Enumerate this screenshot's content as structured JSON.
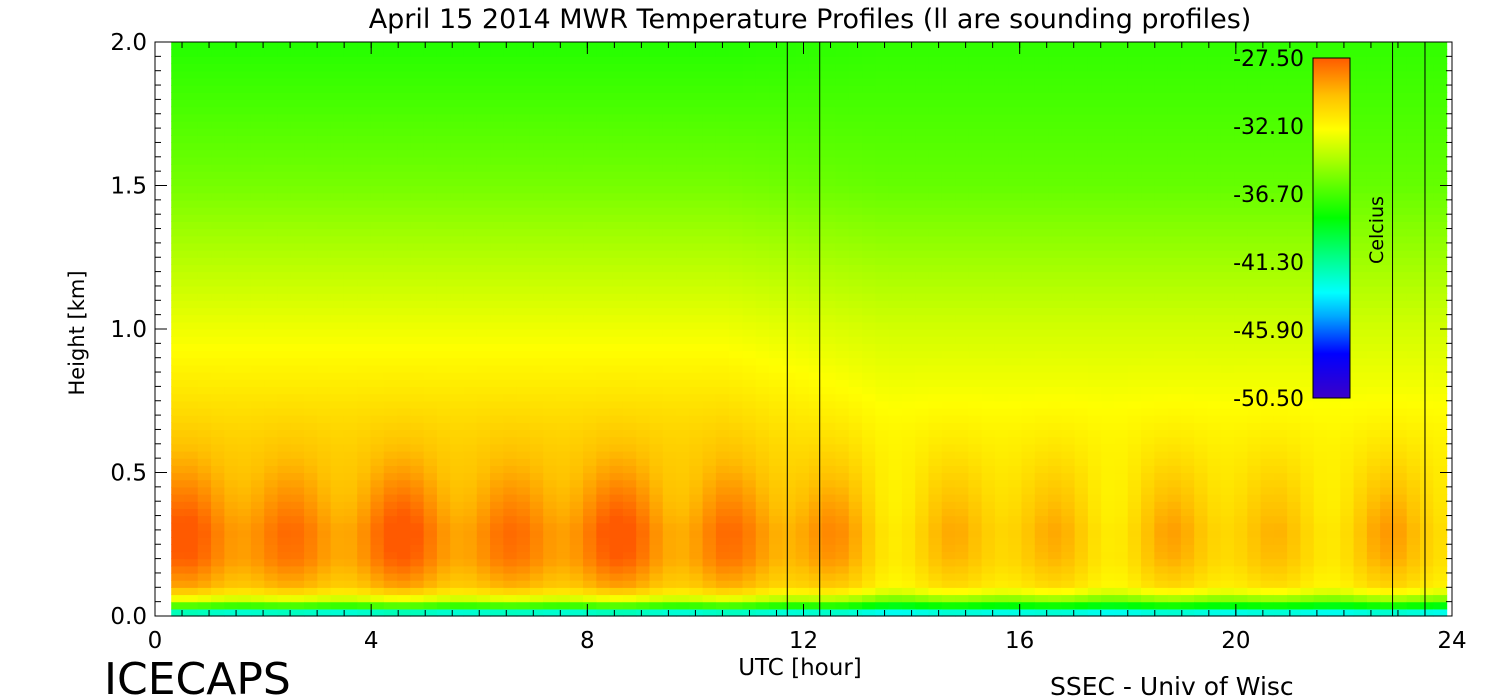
{
  "chart_data": {
    "type": "heatmap",
    "title": "April 15 2014 MWR Temperature Profiles (ll are sounding profiles)",
    "xlabel": "UTC [hour]",
    "ylabel": "Height [km]",
    "xlim": [
      0,
      24
    ],
    "ylim": [
      0,
      2
    ],
    "x_ticks": [
      0,
      4,
      8,
      12,
      16,
      20,
      24
    ],
    "x_tick_labels": [
      "0",
      "4",
      "8",
      "12",
      "16",
      "20",
      "24"
    ],
    "y_ticks": [
      0,
      0.5,
      1,
      1.5,
      2
    ],
    "y_tick_labels": [
      "0.0",
      "0.5",
      "1.0",
      "1.5",
      "2.0"
    ],
    "data_x_range": [
      0.3,
      23.9
    ],
    "sounding_times": [
      11.7,
      12.3,
      22.9,
      23.5
    ],
    "colorbar": {
      "label": "Celcius",
      "ticks": [
        -27.5,
        -32.1,
        -36.7,
        -41.3,
        -45.9,
        -50.5
      ],
      "tick_labels": [
        "-27.50",
        "-32.10",
        "-36.70",
        "-41.30",
        "-45.90",
        "-50.50"
      ],
      "range": [
        -50.5,
        -27.5
      ]
    },
    "temperature_profile": {
      "heights_km": [
        0,
        0.05,
        0.1,
        0.2,
        0.3,
        0.5,
        0.8,
        1.0,
        1.5,
        2.0
      ],
      "early_values": [
        -45,
        -34,
        -30,
        -28.6,
        -28.4,
        -29.8,
        -31.6,
        -32.7,
        -35.6,
        -37.5
      ],
      "late_values": [
        -45,
        -36,
        -31.5,
        -30.5,
        -30.3,
        -31.2,
        -32.6,
        -33.4,
        -36.0,
        -37.2
      ]
    }
  },
  "footer": {
    "left_text": "ICECAPS",
    "right_text": "SSEC - Univ of Wisc"
  }
}
